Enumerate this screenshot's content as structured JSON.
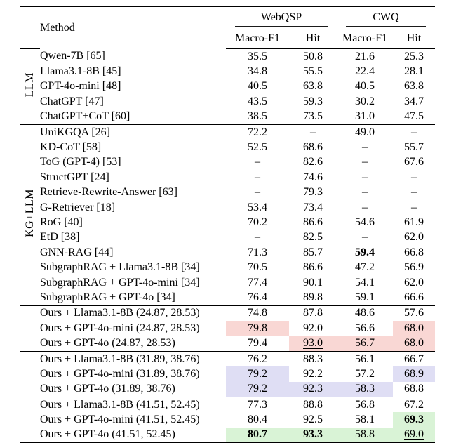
{
  "header": {
    "method": "Method",
    "col_groups": [
      {
        "label": "WebQSP",
        "cols": [
          "Macro-F1",
          "Hit"
        ]
      },
      {
        "label": "CWQ",
        "cols": [
          "Macro-F1",
          "Hit"
        ]
      }
    ],
    "col_keys": [
      "webqsp-macro-f1",
      "webqsp-hit",
      "cwq-macro-f1",
      "cwq-hit"
    ]
  },
  "colors": {
    "pink": "#f9d7d4",
    "lavender": "#dfdef4",
    "green": "#d9f3d6"
  },
  "groups": [
    {
      "label": "LLM",
      "rows": [
        {
          "method": "Qwen-7B [65]",
          "values": [
            "35.5",
            "50.8",
            "21.6",
            "25.3"
          ]
        },
        {
          "method": "Llama3.1-8B [45]",
          "values": [
            "34.8",
            "55.5",
            "22.4",
            "28.1"
          ]
        },
        {
          "method": "GPT-4o-mini [48]",
          "values": [
            "40.5",
            "63.8",
            "40.5",
            "63.8"
          ]
        },
        {
          "method": "ChatGPT [47]",
          "values": [
            "43.5",
            "59.3",
            "30.2",
            "34.7"
          ]
        },
        {
          "method": "ChatGPT+CoT [60]",
          "values": [
            "38.5",
            "73.5",
            "31.0",
            "47.5"
          ]
        }
      ]
    },
    {
      "label": "KG+LLM",
      "rows": [
        {
          "method": "UniKGQA [26]",
          "values": [
            "72.2",
            "–",
            "49.0",
            "–"
          ]
        },
        {
          "method": "KD-CoT [58]",
          "values": [
            "52.5",
            "68.6",
            "–",
            "55.7"
          ]
        },
        {
          "method": "ToG (GPT-4) [53]",
          "values": [
            "–",
            "82.6",
            "–",
            "67.6"
          ]
        },
        {
          "method": "StructGPT [24]",
          "values": [
            "–",
            "74.6",
            "–",
            "–"
          ]
        },
        {
          "method": "Retrieve-Rewrite-Answer [63]",
          "values": [
            "–",
            "79.3",
            "–",
            "–"
          ]
        },
        {
          "method": "G-Retriever [18]",
          "values": [
            "53.4",
            "73.4",
            "–",
            "–"
          ]
        },
        {
          "method": "RoG [40]",
          "values": [
            "70.2",
            "86.6",
            "54.6",
            "61.9"
          ]
        },
        {
          "method": "EtD [38]",
          "values": [
            "–",
            "82.5",
            "–",
            "62.0"
          ]
        },
        {
          "method": "GNN-RAG [44]",
          "values": [
            "71.3",
            "85.7",
            {
              "t": "59.4",
              "b": true
            },
            "66.8"
          ]
        },
        {
          "method": "SubgraphRAG + Llama3.1-8B [34]",
          "values": [
            "70.5",
            "86.6",
            "47.2",
            "56.9"
          ]
        },
        {
          "method": "SubgraphRAG + GPT-4o-mini [34]",
          "values": [
            "77.4",
            "90.1",
            "54.1",
            "62.0"
          ]
        },
        {
          "method": "SubgraphRAG + GPT-4o [34]",
          "values": [
            "76.4",
            "89.8",
            {
              "t": "59.1",
              "u": true
            },
            "66.6"
          ]
        }
      ]
    },
    {
      "label": "",
      "rows": [
        {
          "method": "Ours + Llama3.1-8B (24.87, 28.53)",
          "values": [
            "74.8",
            "87.8",
            "48.6",
            "57.6"
          ]
        },
        {
          "method": "Ours + GPT-4o-mini (24.87, 28.53)",
          "values": [
            {
              "t": "79.8",
              "hl": "pink"
            },
            "92.0",
            "56.6",
            {
              "t": "68.0",
              "hl": "pink"
            }
          ]
        },
        {
          "method": "Ours + GPT-4o (24.87, 28.53)",
          "values": [
            "79.4",
            {
              "t": "93.0",
              "u": true,
              "hl": "pink"
            },
            {
              "t": "56.7",
              "hl": "pink"
            },
            {
              "t": "68.0",
              "hl": "pink"
            }
          ]
        }
      ]
    },
    {
      "label": "",
      "rows": [
        {
          "method": "Ours + Llama3.1-8B (31.89, 38.76)",
          "values": [
            "76.2",
            "88.3",
            "56.1",
            "66.7"
          ]
        },
        {
          "method": "Ours + GPT-4o-mini (31.89, 38.76)",
          "values": [
            {
              "t": "79.2",
              "hl": "lavender"
            },
            "92.2",
            "57.2",
            {
              "t": "68.9",
              "hl": "lavender"
            }
          ]
        },
        {
          "method": "Ours + GPT-4o (31.89, 38.76)",
          "values": [
            {
              "t": "79.2",
              "hl": "lavender"
            },
            {
              "t": "92.3",
              "hl": "lavender"
            },
            {
              "t": "58.3",
              "hl": "lavender"
            },
            "68.8"
          ]
        }
      ]
    },
    {
      "label": "",
      "rows": [
        {
          "method": "Ours + Llama3.1-8B (41.51, 52.45)",
          "values": [
            "77.3",
            "88.8",
            "56.8",
            "67.2"
          ]
        },
        {
          "method": "Ours + GPT-4o-mini (41.51, 52.45)",
          "values": [
            {
              "t": "80.4",
              "u": true
            },
            "92.5",
            "58.1",
            {
              "t": "69.3",
              "b": true,
              "hl": "green"
            }
          ]
        },
        {
          "method": "Ours + GPT-4o (41.51, 52.45)",
          "values": [
            {
              "t": "80.7",
              "b": true,
              "hl": "green"
            },
            {
              "t": "93.3",
              "b": true,
              "hl": "green"
            },
            {
              "t": "58.8",
              "hl": "green"
            },
            {
              "t": "69.0",
              "u": true,
              "hl": "green"
            }
          ]
        }
      ]
    }
  ]
}
